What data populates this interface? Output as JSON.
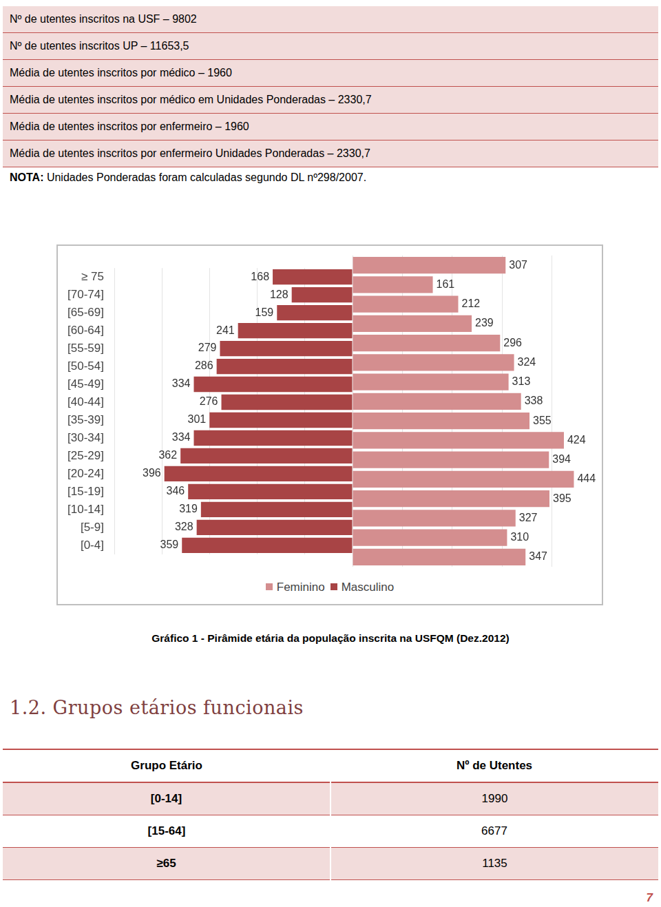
{
  "header": {
    "lines": [
      "Nº de utentes inscritos na USF – 9802",
      "Nº de utentes inscritos UP – 11653,5",
      "Média de utentes inscritos por médico – 1960",
      "Média de utentes inscritos por médico em Unidades Ponderadas – 2330,7",
      "Média de utentes inscritos por enfermeiro – 1960",
      "Média de utentes inscritos por enfermeiro Unidades Ponderadas – 2330,7"
    ],
    "note": {
      "label": "NOTA:",
      "text": "Unidades Ponderadas foram calculadas segundo DL nº298/2007."
    }
  },
  "chart_data": {
    "type": "bar",
    "title": "Gráfico 1 - Pirâmide etária da população inscrita na USFQM (Dez.2012)",
    "orientation": "horizontal",
    "categories": [
      "≥ 75",
      "[70-74]",
      "[65-69]",
      "[60-64]",
      "[55-59]",
      "[50-54]",
      "[45-49]",
      "[40-44]",
      "[35-39]",
      "[30-34]",
      "[25-29]",
      "[20-24]",
      "[15-19]",
      "[10-14]",
      "[5-9]",
      "[0-4]"
    ],
    "series": [
      {
        "name": "Feminino",
        "color": "#d48e8f",
        "values": [
          307,
          161,
          212,
          239,
          296,
          324,
          313,
          338,
          355,
          424,
          394,
          444,
          395,
          327,
          310,
          347
        ]
      },
      {
        "name": "Masculino",
        "color": "#a84445",
        "values": [
          168,
          128,
          159,
          241,
          279,
          286,
          334,
          276,
          301,
          334,
          362,
          396,
          346,
          319,
          328,
          359
        ]
      }
    ],
    "xlim": [
      0,
      500
    ],
    "xticks": [
      0,
      100,
      200,
      300,
      400,
      500
    ],
    "grid": true,
    "legend": "bottom",
    "data_labels": true,
    "tick_labels": "y"
  },
  "section": {
    "title": "1.2. Grupos etários funcionais"
  },
  "table": {
    "columns": [
      "Grupo Etário",
      "Nº de Utentes"
    ],
    "rows": [
      [
        "[0-14]",
        1990
      ],
      [
        "[15-64]",
        6677
      ],
      [
        "≥65",
        1135
      ]
    ]
  },
  "page_number": "7"
}
